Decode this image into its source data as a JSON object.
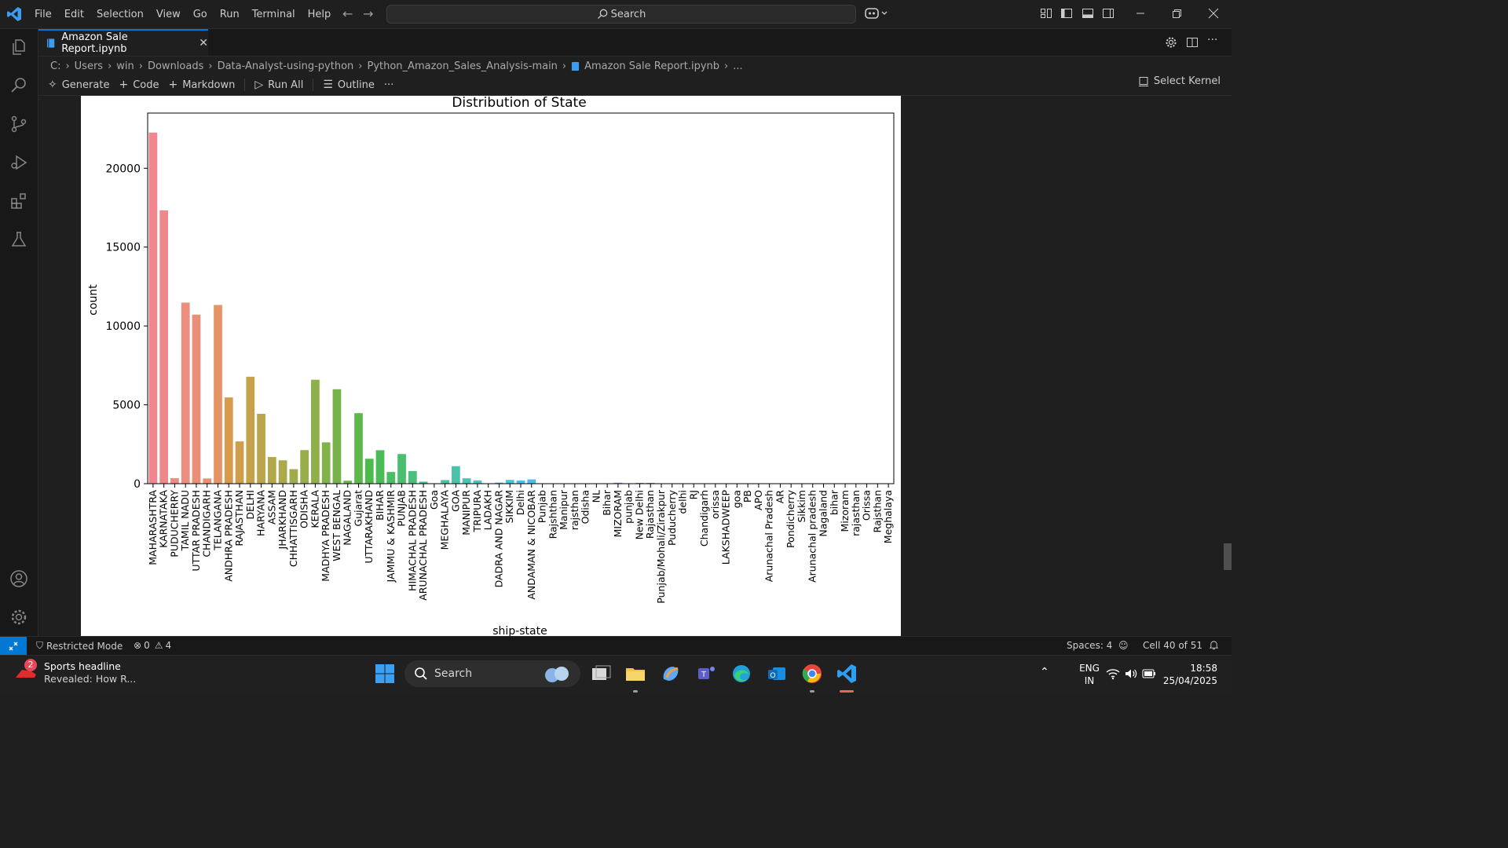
{
  "menu": [
    "File",
    "Edit",
    "Selection",
    "View",
    "Go",
    "Run",
    "Terminal",
    "Help"
  ],
  "search": {
    "label": "Search"
  },
  "tab": {
    "label": "Amazon Sale Report.ipynb"
  },
  "breadcrumb": [
    "C:",
    "Users",
    "win",
    "Downloads",
    "Data-Analyst-using-python",
    "Python_Amazon_Sales_Analysis-main",
    "Amazon Sale Report.ipynb",
    "..."
  ],
  "toolbar": {
    "generate": "Generate",
    "code": "Code",
    "markdown": "Markdown",
    "run_all": "Run All",
    "outline": "Outline",
    "more": "···",
    "kernel": "Select Kernel"
  },
  "chart_data": {
    "type": "bar",
    "title": "Distribution of State",
    "xlabel": "ship-state",
    "ylabel": "count",
    "ylim": [
      0,
      23500
    ],
    "yticks": [
      0,
      5000,
      10000,
      15000,
      20000
    ],
    "grid": false,
    "categories": [
      "MAHARASHTRA",
      "KARNATAKA",
      "PUDUCHERRY",
      "TAMIL NADU",
      "UTTAR PRADESH",
      "CHANDIGARH",
      "TELANGANA",
      "ANDHRA PRADESH",
      "RAJASTHAN",
      "DELHI",
      "HARYANA",
      "ASSAM",
      "JHARKHAND",
      "CHHATTISGARH",
      "ODISHA",
      "KERALA",
      "MADHYA PRADESH",
      "WEST BENGAL",
      "NAGALAND",
      "Gujarat",
      "UTTARAKHAND",
      "BIHAR",
      "JAMMU & KASHMIR",
      "PUNJAB",
      "HIMACHAL PRADESH",
      "ARUNACHAL PRADESH",
      "Goa",
      "MEGHALAYA",
      "GOA",
      "MANIPUR",
      "TRIPURA",
      "LADAKH",
      "DADRA AND NAGAR",
      "SIKKIM",
      "Delhi",
      "ANDAMAN & NICOBAR",
      "Punjab",
      "Rajshthan",
      "Manipur",
      "rajsthan",
      "Odisha",
      "NL",
      "Bihar",
      "MIZORAM",
      "punjab",
      "New Delhi",
      "Rajasthan",
      "Punjab/Mohali/Zirakpur",
      "Puducherry",
      "delhi",
      "RJ",
      "Chandigarh",
      "orissa",
      "LAKSHADWEEP",
      "goa",
      "PB",
      "APO",
      "Arunachal Pradesh",
      "AR",
      "Pondicherry",
      "Sikkim",
      "Arunachal pradesh",
      "Nagaland",
      "bihar",
      "Mizoram",
      "rajasthan",
      "Orissa",
      "Rajsthan",
      "Meghalaya"
    ],
    "values": [
      22260,
      17330,
      350,
      11480,
      10720,
      330,
      11330,
      5470,
      2680,
      6780,
      4430,
      1690,
      1480,
      920,
      2130,
      6590,
      2620,
      5990,
      190,
      4470,
      1580,
      2120,
      740,
      1880,
      800,
      130,
      20,
      230,
      1110,
      340,
      210,
      20,
      70,
      240,
      200,
      270,
      5,
      5,
      5,
      5,
      5,
      5,
      5,
      60,
      5,
      50,
      50,
      5,
      5,
      5,
      5,
      5,
      5,
      5,
      5,
      5,
      5,
      5,
      5,
      5,
      5,
      5,
      5,
      5,
      5,
      5,
      5,
      5,
      5
    ],
    "colors": [
      "#f0878f",
      "#ef8989",
      "#ee8b84",
      "#ec8d7e",
      "#ea8f77",
      "#e8926e",
      "#e59565",
      "#d99a4e",
      "#cf9e4b",
      "#c6a14b",
      "#bca44b",
      "#b3a74b",
      "#aaa94b",
      "#a0ab4b",
      "#97ae4b",
      "#8db04b",
      "#82b24b",
      "#76b44b",
      "#69b74b",
      "#5bb94b",
      "#4dbb4b",
      "#4bbc55",
      "#4bbd62",
      "#4bbe6f",
      "#4bbf7c",
      "#4bc088",
      "#4bc194",
      "#4bc29f",
      "#4bc3aa",
      "#4bc3b5",
      "#4bc3bf",
      "#4bc3c8",
      "#4bc2d2",
      "#4bc1dc",
      "#4bbfe5",
      "#4bbcee",
      "#4bb8f2",
      "#54b2f4",
      "#62abf5",
      "#71a4f5",
      "#819cf5",
      "#9194f5",
      "#a18cf4",
      "#b084f2",
      "#bd7cf0",
      "#c975ec",
      "#d46fe6",
      "#dd69df",
      "#e465d6",
      "#e962cc",
      "#ec61c1",
      "#ee61b5",
      "#ef62a9",
      "#ef649d",
      "#ef6791",
      "#ef6a86",
      "#ef6e7c",
      "#ef7275",
      "#ef7670",
      "#ef7a6c",
      "#ef7e6a",
      "#ef8268",
      "#ef8667",
      "#ef8967",
      "#ef8b67",
      "#ef8c67",
      "#ef8d67",
      "#ef8e67",
      "#ef8f67"
    ]
  },
  "status": {
    "restricted": "Restricted Mode",
    "errors": "0",
    "warnings": "4",
    "spaces": "Spaces: 4",
    "cell": "Cell 40 of 51"
  },
  "taskbar": {
    "news_badge": "2",
    "news_title": "Sports headline",
    "news_sub": "Revealed: How R...",
    "search": "Search",
    "lang1": "ENG",
    "lang2": "IN",
    "time": "18:58",
    "date": "25/04/2025"
  }
}
